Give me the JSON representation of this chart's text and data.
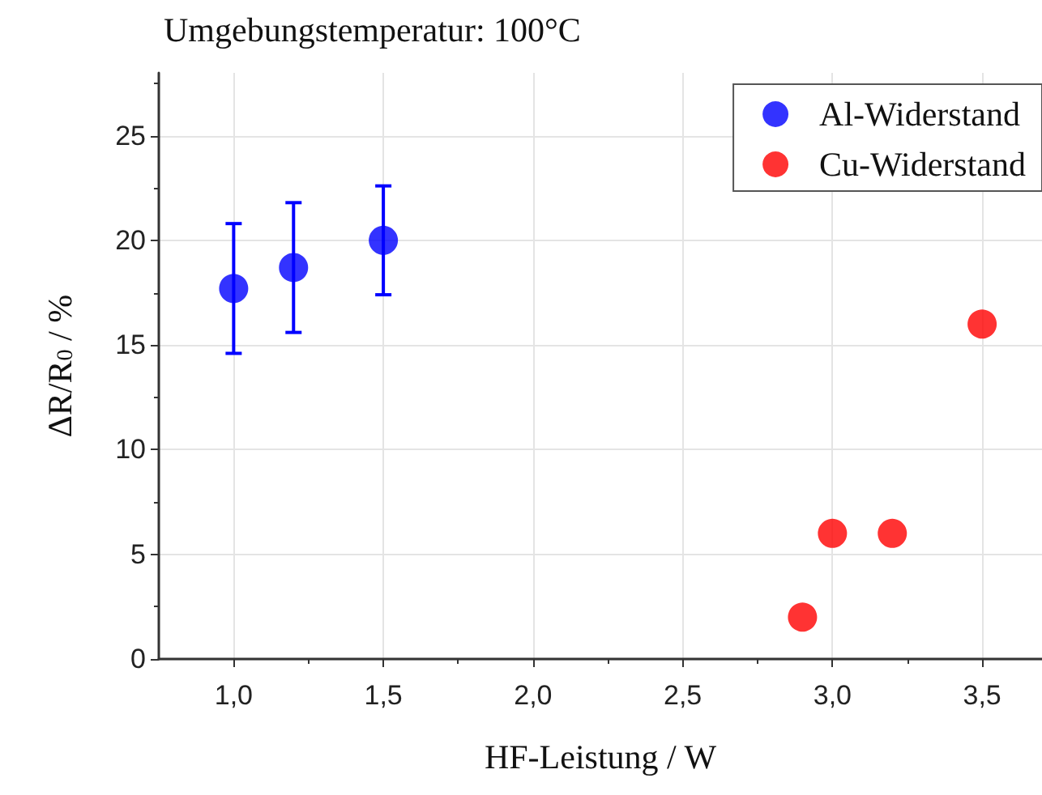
{
  "chart_data": {
    "type": "scatter",
    "title": "Umgebungstemperatur: 100°C",
    "xlabel": "HF-Leistung / W",
    "ylabel": "ΔR/R$_{0}$ / %",
    "series": [
      {
        "name": "Al-Widerstand",
        "color": "#0000ff",
        "x": [
          1.0,
          1.2,
          1.5
        ],
        "values": [
          17.7,
          18.7,
          20.0
        ],
        "errors": [
          3.1,
          3.1,
          2.6
        ]
      },
      {
        "name": "Cu-Widerstand",
        "color": "#ff0000",
        "x": [
          2.9,
          3.0,
          3.2,
          3.5
        ],
        "values": [
          2.0,
          6.0,
          6.0,
          16.0
        ]
      }
    ],
    "xlim": [
      0.75,
      3.7
    ],
    "xticks": [
      {
        "value": 1,
        "label": "1,0"
      },
      {
        "value": 1.5,
        "label": "1,5"
      },
      {
        "value": 2,
        "label": "2,0"
      },
      {
        "value": 2.5,
        "label": "2,5"
      },
      {
        "value": 3,
        "label": "3,0"
      },
      {
        "value": 3.5,
        "label": "3,5"
      }
    ],
    "ylim": [
      0,
      28
    ],
    "yticks": [
      0,
      5,
      10,
      15,
      20,
      25
    ],
    "grid": true,
    "legend": "top right",
    "marker": "circle"
  }
}
